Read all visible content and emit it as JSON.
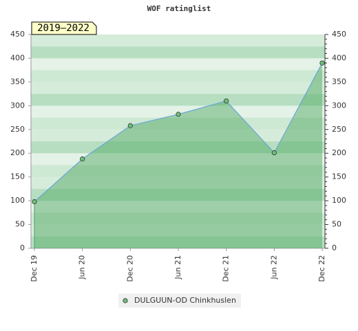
{
  "chart_data": {
    "type": "line",
    "title": "WOF ratinglist",
    "period": "2019–2022",
    "categories": [
      "Dec 19",
      "Jun 20",
      "Dec 20",
      "Jun 21",
      "Dec 21",
      "Jun 22",
      "Dec 22"
    ],
    "series": [
      {
        "name": "DULGUUN-OD Chinkhuslen",
        "color": "#4aa35a",
        "line_color": "#6aa6d8",
        "values": [
          98,
          188,
          258,
          282,
          310,
          201,
          390
        ]
      }
    ],
    "ylim": [
      0,
      450
    ],
    "yticks": [
      0,
      50,
      100,
      150,
      200,
      250,
      300,
      350,
      400,
      450
    ],
    "y2lim": [
      0,
      450
    ],
    "y2ticks": [
      0,
      50,
      100,
      150,
      200,
      250,
      300,
      350,
      400,
      450
    ],
    "grid": true,
    "legend": "bottom"
  }
}
